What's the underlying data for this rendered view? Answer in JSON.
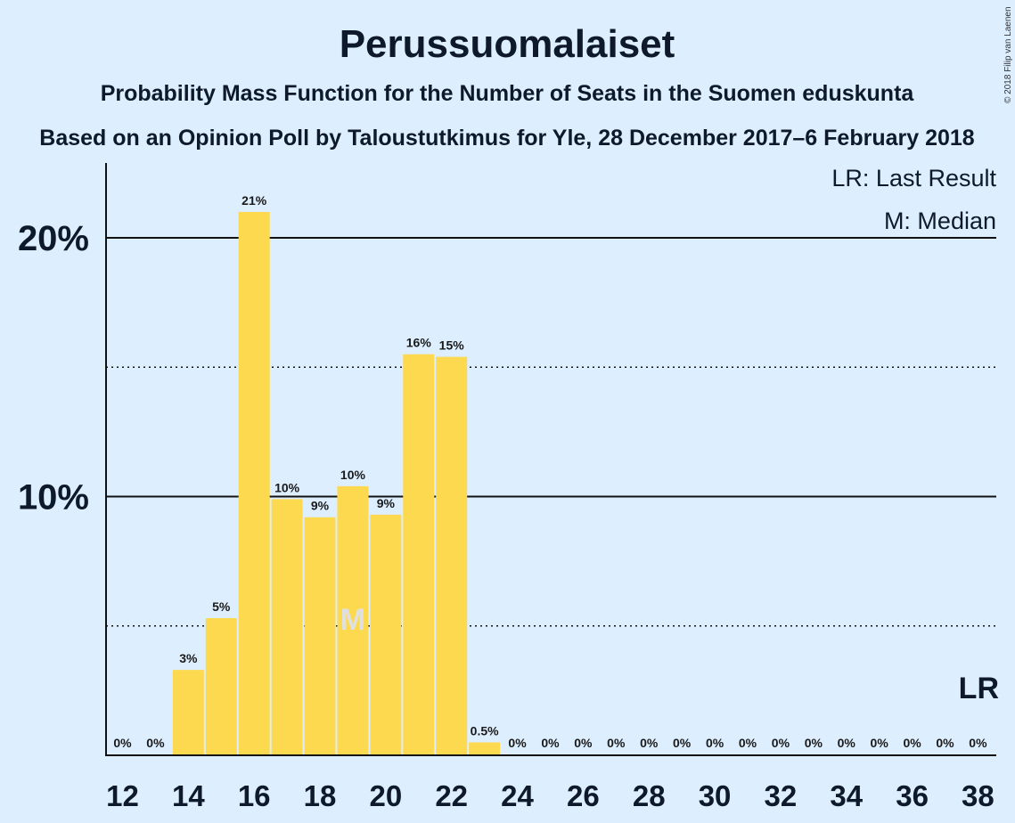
{
  "title": "Perussuomalaiset",
  "subtitle_1": "Probability Mass Function for the Number of Seats in the Suomen eduskunta",
  "subtitle_2": "Based on an Opinion Poll by Taloustutkimus for Yle, 28 December 2017–6 February 2018",
  "copyright": "© 2018 Filip van Laenen",
  "legend": {
    "last_result": "LR: Last Result",
    "median": "M: Median"
  },
  "colors": {
    "background": "#ddeeff",
    "bar": "#fdd94f",
    "axis": "#111111"
  },
  "chart_data": {
    "type": "bar",
    "title": "Perussuomalaiset",
    "xlabel": "",
    "ylabel": "",
    "ylim": [
      0,
      22.5
    ],
    "yticks": [
      {
        "value": 10,
        "label": "10%"
      },
      {
        "value": 20,
        "label": "20%"
      }
    ],
    "dotted_gridlines": [
      5,
      15
    ],
    "solid_gridlines": [
      10,
      20
    ],
    "xtick_labels": [
      "12",
      "14",
      "16",
      "18",
      "20",
      "22",
      "24",
      "26",
      "28",
      "30",
      "32",
      "34",
      "36",
      "38"
    ],
    "x": [
      12,
      13,
      14,
      15,
      16,
      17,
      18,
      19,
      20,
      21,
      22,
      23,
      24,
      25,
      26,
      27,
      28,
      29,
      30,
      31,
      32,
      33,
      34,
      35,
      36,
      37,
      38
    ],
    "values": [
      0,
      0,
      3.3,
      5.3,
      21.0,
      9.9,
      9.2,
      10.4,
      9.3,
      15.5,
      15.4,
      0.5,
      0,
      0,
      0,
      0,
      0,
      0,
      0,
      0,
      0,
      0,
      0,
      0,
      0,
      0,
      0
    ],
    "labels": [
      "0%",
      "0%",
      "3%",
      "5%",
      "21%",
      "10%",
      "9%",
      "10%",
      "9%",
      "16%",
      "15%",
      "0.5%",
      "0%",
      "0%",
      "0%",
      "0%",
      "0%",
      "0%",
      "0%",
      "0%",
      "0%",
      "0%",
      "0%",
      "0%",
      "0%",
      "0%",
      "0%"
    ],
    "median": {
      "x": 19,
      "label": "M"
    },
    "last_result": {
      "x": 38,
      "label": "LR"
    }
  }
}
